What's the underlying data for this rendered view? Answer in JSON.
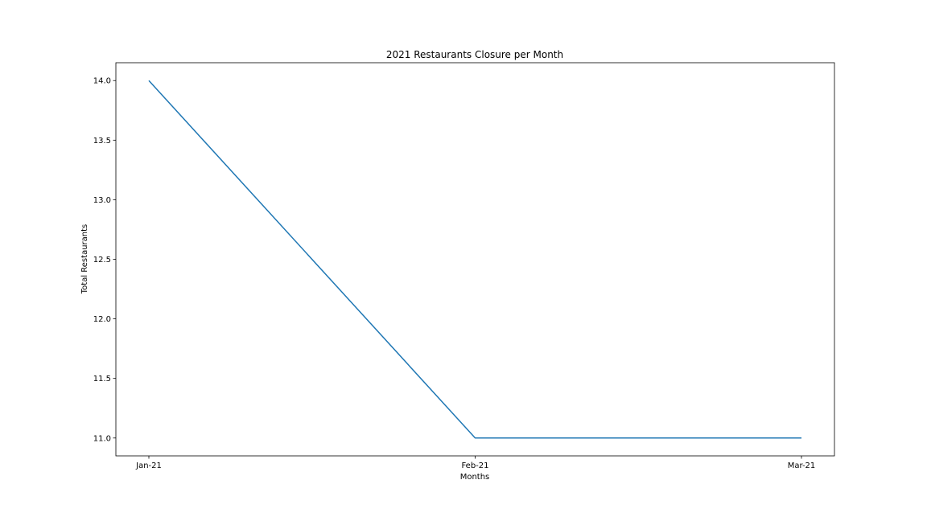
{
  "chart_data": {
    "type": "line",
    "title": "2021 Restaurants Closure per Month",
    "xlabel": "Months",
    "ylabel": "Total Restaurants",
    "categories": [
      "Jan-21",
      "Feb-21",
      "Mar-21"
    ],
    "series": [
      {
        "values": [
          14,
          11,
          11
        ],
        "color": "#1f77b4"
      }
    ],
    "ylim": [
      10.85,
      14.15
    ],
    "yticks": [
      "11.0",
      "11.5",
      "12.0",
      "12.5",
      "13.0",
      "13.5",
      "14.0"
    ],
    "grid": false,
    "legend": "none"
  }
}
